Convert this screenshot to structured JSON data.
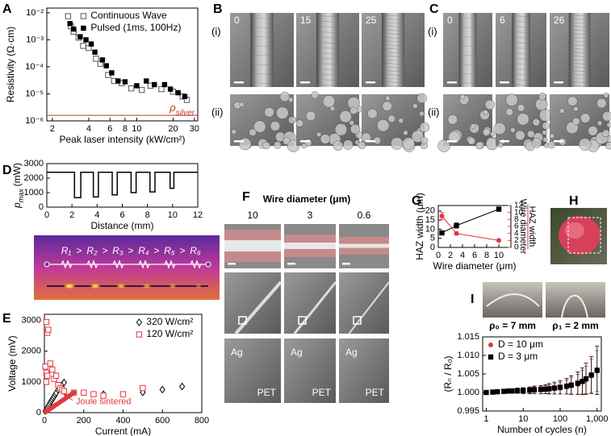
{
  "chart_data": [
    {
      "type": "scatter",
      "panel": "A",
      "xlabel": "Peak laser intensity (kW/cm²)",
      "ylabel": "Resistivity (Ω·cm)",
      "xlog": true,
      "ylog": true,
      "xlim": [
        1.8,
        32
      ],
      "ylim": [
        1e-06,
        0.015
      ],
      "xticks": [
        2,
        4,
        6,
        8,
        10,
        20,
        30
      ],
      "yticks": [
        {
          "value": 1e-06,
          "label": "10⁻⁶"
        },
        {
          "value": 1e-05,
          "label": "10⁻⁵"
        },
        {
          "value": 0.0001,
          "label": "10⁻⁴"
        },
        {
          "value": 0.001,
          "label": "10⁻³"
        },
        {
          "value": 0.01,
          "label": "10⁻²"
        }
      ],
      "legend": "upper right",
      "reference_line": {
        "value": 1.6e-06,
        "symbol": "ρ",
        "subscript": "silver",
        "color": "#c0392b"
      },
      "series": [
        {
          "name": "Continuous Wave",
          "marker": "open-square",
          "color": "#555555",
          "x": [
            2.7,
            2.85,
            3.0,
            3.3,
            3.6,
            4.0,
            4.6,
            5.0,
            5.8,
            6.5,
            7.5,
            9,
            11,
            13,
            16,
            20,
            24,
            26
          ],
          "values": [
            0.0075,
            0.0032,
            0.002,
            0.0012,
            0.0006,
            0.0005,
            0.0002,
            0.00013,
            5e-05,
            3e-05,
            2.5e-05,
            1.6e-05,
            1.4e-05,
            2e-05,
            1.5e-05,
            1.2e-05,
            8e-06,
            6e-06
          ]
        },
        {
          "name": "Pulsed (1ms, 100Hz)",
          "marker": "filled-square",
          "color": "#000000",
          "x": [
            2.8,
            3.0,
            3.4,
            3.8,
            4.2,
            4.5,
            5.2,
            5.6,
            6.2,
            7.0,
            8,
            10,
            12,
            14,
            17,
            19,
            22,
            25
          ],
          "values": [
            0.004,
            0.0025,
            0.0013,
            0.001,
            0.0007,
            0.00035,
            0.00018,
            0.00011,
            6e-05,
            3e-05,
            2.8e-05,
            2e-05,
            3e-05,
            2.2e-05,
            2.2e-05,
            1.5e-05,
            1.1e-05,
            8e-06
          ]
        }
      ]
    },
    {
      "type": "line",
      "panel": "D",
      "xlabel": "Distance (mm)",
      "ylabel_symbol": "p",
      "ylabel_subscript": "max",
      "ylabel_unit": "(mW)",
      "xlim": [
        0,
        12
      ],
      "ylim": [
        0,
        3000
      ],
      "xticks": [
        0,
        2,
        4,
        6,
        8,
        10,
        12
      ],
      "yticks": [
        0,
        1000,
        2000,
        3000
      ],
      "series": [
        {
          "line": true,
          "color": "#000000",
          "x": [
            0,
            2.2,
            2.2,
            2.7,
            2.7,
            3.7,
            3.7,
            4.1,
            4.1,
            5.2,
            5.2,
            5.6,
            5.6,
            6.7,
            6.7,
            7.1,
            7.1,
            8.2,
            8.2,
            8.6,
            8.6,
            9.8,
            9.8,
            10.1,
            10.1,
            12
          ],
          "values": [
            2400,
            2400,
            650,
            650,
            2400,
            2400,
            700,
            700,
            2400,
            2400,
            850,
            850,
            2400,
            2400,
            1000,
            1000,
            2400,
            2400,
            1050,
            1050,
            2400,
            2400,
            1300,
            1300,
            2400,
            2400
          ]
        }
      ]
    },
    {
      "type": "scatter",
      "panel": "E",
      "xlabel": "Current (mA)",
      "ylabel": "Voltage (mV)",
      "xlim": [
        0,
        800
      ],
      "ylim": [
        0,
        3200
      ],
      "xticks": [
        0,
        200,
        400,
        600,
        800
      ],
      "yticks": [
        0,
        1000,
        2000,
        3000
      ],
      "legend": "upper right",
      "series": [
        {
          "name": "320 W/cm²",
          "marker": "diamond",
          "color": "#000000",
          "x": [
            5,
            10,
            15,
            20,
            25,
            30,
            35,
            40,
            45,
            50,
            55,
            60,
            70,
            80,
            90,
            100,
            300,
            500,
            600,
            700
          ],
          "values": [
            50,
            100,
            160,
            220,
            270,
            330,
            380,
            430,
            480,
            530,
            590,
            640,
            740,
            820,
            900,
            980,
            600,
            660,
            750,
            850
          ]
        },
        {
          "name": "120 W/cm²",
          "marker": "open-square",
          "color": "#e0393e",
          "x": [
            10,
            15,
            20,
            5,
            10,
            15,
            10,
            30,
            40,
            50,
            60,
            70,
            80,
            90,
            100,
            150,
            200,
            250,
            300,
            400,
            500
          ],
          "values": [
            2950,
            2600,
            2700,
            1500,
            1300,
            1200,
            1000,
            1600,
            1400,
            1100,
            1200,
            900,
            800,
            750,
            700,
            650,
            650,
            600,
            550,
            600,
            800
          ]
        },
        {
          "name": "Joule sintered",
          "in_legend": false,
          "marker": "circle",
          "color": "#e0393e",
          "x": [
            5,
            10,
            15,
            20,
            25,
            30,
            35,
            40,
            45,
            50,
            60,
            70,
            80,
            90,
            100,
            110,
            120,
            130,
            140,
            150
          ],
          "values": [
            20,
            45,
            65,
            85,
            110,
            130,
            150,
            175,
            195,
            215,
            260,
            300,
            345,
            390,
            430,
            475,
            520,
            560,
            605,
            650
          ]
        }
      ]
    },
    {
      "type": "line",
      "panel": "G",
      "xlabel": "Wire diameter (μm)",
      "ylabel": "HAZ width (μm)",
      "y2label_numerator": "HAZ width",
      "y2label_denominator": "Wire diameter",
      "y2color": "#e0393e",
      "xlim": [
        0,
        12
      ],
      "ylim": [
        0,
        23
      ],
      "y2lim": [
        0,
        12
      ],
      "xticks": [
        0,
        2,
        4,
        6,
        8,
        10
      ],
      "yticks": [
        0,
        5,
        10,
        15,
        20
      ],
      "y2ticks": [
        0,
        2,
        4,
        6,
        8,
        10,
        12
      ],
      "series": [
        {
          "line": true,
          "marker": "filled-square",
          "color": "#000000",
          "x": [
            0.6,
            3,
            10
          ],
          "values": [
            8,
            12,
            21
          ],
          "errors": [
            0.6,
            1.4,
            1.1
          ]
        },
        {
          "line": true,
          "marker": "circle",
          "color": "#e0393e",
          "axis": "y2",
          "x": [
            0.6,
            3,
            10
          ],
          "values": [
            9,
            4,
            2
          ],
          "errors": [
            1.0,
            0.4,
            0.3
          ]
        }
      ]
    },
    {
      "type": "line",
      "panel": "I",
      "xlabel": "Number of cycles (n)",
      "ylabel": "(Rₙ / R₀)",
      "xlog": true,
      "xlim": [
        0.8,
        1300
      ],
      "ylim": [
        0.995,
        1.015
      ],
      "xticks": [
        1,
        10,
        100,
        {
          "value": 1000,
          "label": "1,000"
        }
      ],
      "yticks": [
        0.995,
        {
          "value": 1,
          "label": "1.000"
        },
        1.005,
        {
          "value": 1.01,
          "label": "1.010"
        },
        1.015
      ],
      "legend": "upper left",
      "x": [
        1,
        1.5,
        2,
        3,
        4,
        5,
        7,
        10,
        15,
        20,
        30,
        40,
        50,
        70,
        100,
        150,
        200,
        300,
        400,
        500,
        700,
        1000
      ],
      "series": [
        {
          "name": "D = 10 μm",
          "marker": "circle",
          "color": "#e0393e",
          "values": [
            1,
            1,
            1.0002,
            1.0003,
            1.0003,
            1.0004,
            1.0004,
            1.0005,
            1.0005,
            1.0006,
            1.0007,
            1.0008,
            1.0009,
            1.001,
            1.0012,
            1.0015,
            1.0018,
            1.0022,
            1.0028,
            1.0034,
            1.0045,
            1.0058
          ],
          "errors": [
            0.0001,
            0.0002,
            0.0003,
            0.0004,
            0.0004,
            0.0005,
            0.0006,
            0.0007,
            0.0008,
            0.0009,
            0.001,
            0.0011,
            0.0012,
            0.0014,
            0.0016,
            0.0019,
            0.0022,
            0.0027,
            0.0032,
            0.0037,
            0.0045,
            0.0055
          ]
        },
        {
          "name": "D = 3 μm",
          "marker": "filled-square",
          "color": "#000000",
          "values": [
            1,
            1.0001,
            1.0002,
            1.0003,
            1.0004,
            1.0004,
            1.0005,
            1.0005,
            1.0006,
            1.0007,
            1.0008,
            1.0009,
            1.001,
            1.0012,
            1.0014,
            1.0017,
            1.002,
            1.0025,
            1.003,
            1.0037,
            1.0047,
            1.006
          ],
          "errors": [
            0.0001,
            0.0002,
            0.0003,
            0.0004,
            0.0005,
            0.0006,
            0.0007,
            0.0008,
            0.0009,
            0.001,
            0.0011,
            0.0012,
            0.0014,
            0.0016,
            0.0018,
            0.0021,
            0.0025,
            0.003,
            0.0036,
            0.0042,
            0.005,
            0.0065
          ]
        }
      ]
    }
  ],
  "images": {
    "B": {
      "letter": "B",
      "rows": [
        "(i)",
        "(ii)"
      ],
      "labels": [
        "0",
        "15",
        "25"
      ]
    },
    "C": {
      "letter": "C",
      "rows": [
        "(i)",
        "(ii)"
      ],
      "labels": [
        "0",
        "6",
        "26"
      ]
    },
    "D": {
      "resistors": [
        "R₁",
        "R₂",
        "R₃",
        "R₄",
        "R₅",
        "R₆"
      ],
      "separators": [
        ">",
        ">",
        ">",
        ">",
        ">"
      ]
    },
    "F": {
      "letter": "F",
      "title": "Wire diameter (μm)",
      "columns": [
        "10",
        "3",
        "0.6"
      ],
      "materials": [
        [
          "Ag",
          "PET"
        ],
        [
          "Ag",
          "PET"
        ],
        [
          "Ag",
          "PET"
        ]
      ]
    },
    "H": {
      "letter": "H"
    },
    "I": {
      "photos": [
        "ρ₀ = 7 mm",
        "ρ₁ = 2 mm"
      ]
    }
  }
}
